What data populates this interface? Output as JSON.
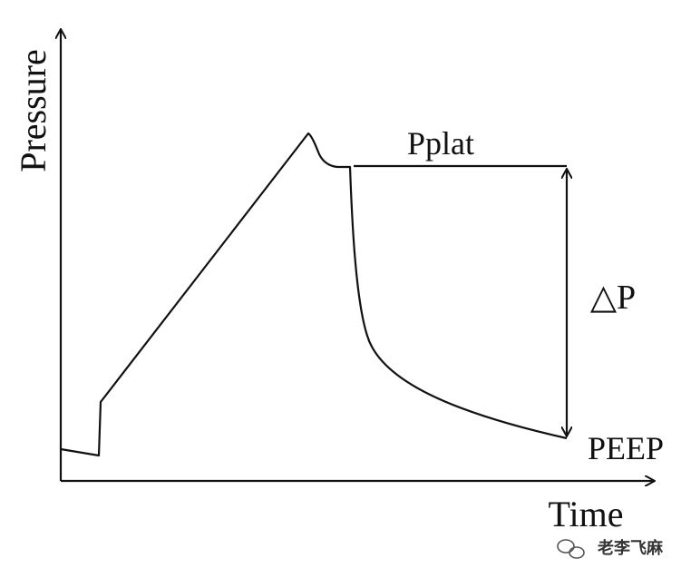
{
  "axes": {
    "y_label": "Pressure",
    "x_label": "Time"
  },
  "annotations": {
    "plateau": "Pplat",
    "delta": "△P",
    "peep": "PEEP"
  },
  "watermark": "老李飞麻"
}
